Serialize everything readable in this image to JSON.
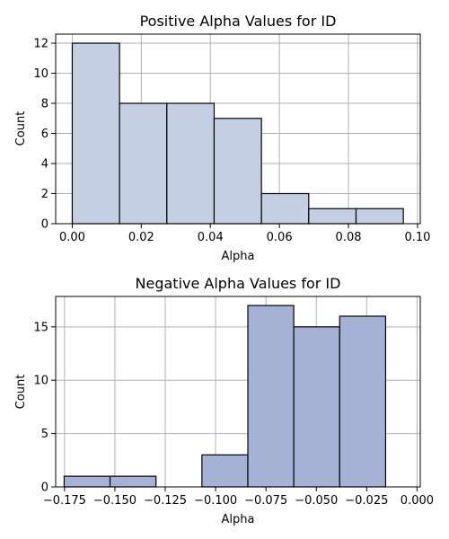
{
  "chart_data": [
    {
      "type": "bar",
      "title": "Positive Alpha Values for ID",
      "xlabel": "Alpha",
      "ylabel": "Count",
      "xlim": [
        -0.0048,
        0.1008
      ],
      "ylim": [
        0,
        12.6
      ],
      "grid": true,
      "bar_color": "#c5cfe3",
      "edge_color": "#000000",
      "bins": [
        {
          "x0": 0.0,
          "x1": 0.0137,
          "count": 12
        },
        {
          "x0": 0.0137,
          "x1": 0.0274,
          "count": 8
        },
        {
          "x0": 0.0274,
          "x1": 0.0411,
          "count": 8
        },
        {
          "x0": 0.0411,
          "x1": 0.0548,
          "count": 7
        },
        {
          "x0": 0.0548,
          "x1": 0.0685,
          "count": 2
        },
        {
          "x0": 0.0685,
          "x1": 0.0822,
          "count": 1
        },
        {
          "x0": 0.0822,
          "x1": 0.0959,
          "count": 1
        }
      ],
      "xticks": [
        {
          "value": 0.0,
          "label": "0.00"
        },
        {
          "value": 0.02,
          "label": "0.02"
        },
        {
          "value": 0.04,
          "label": "0.04"
        },
        {
          "value": 0.06,
          "label": "0.06"
        },
        {
          "value": 0.08,
          "label": "0.08"
        },
        {
          "value": 0.1,
          "label": "0.10"
        }
      ],
      "yticks": [
        {
          "value": 0,
          "label": "0"
        },
        {
          "value": 2,
          "label": "2"
        },
        {
          "value": 4,
          "label": "4"
        },
        {
          "value": 6,
          "label": "6"
        },
        {
          "value": 8,
          "label": "8"
        },
        {
          "value": 10,
          "label": "10"
        },
        {
          "value": 12,
          "label": "12"
        }
      ]
    },
    {
      "type": "bar",
      "title": "Negative Alpha Values for ID",
      "xlabel": "Alpha",
      "ylabel": "Count",
      "xlim": [
        -0.1794,
        0.0016
      ],
      "ylim": [
        0,
        17.85
      ],
      "grid": true,
      "bar_color": "#a5b2d6",
      "edge_color": "#000000",
      "bins": [
        {
          "x0": -0.1752,
          "x1": -0.1524,
          "count": 1
        },
        {
          "x0": -0.1524,
          "x1": -0.1296,
          "count": 1
        },
        {
          "x0": -0.1296,
          "x1": -0.1068,
          "count": 0
        },
        {
          "x0": -0.1068,
          "x1": -0.084,
          "count": 3
        },
        {
          "x0": -0.084,
          "x1": -0.0612,
          "count": 17
        },
        {
          "x0": -0.0612,
          "x1": -0.0384,
          "count": 15
        },
        {
          "x0": -0.0384,
          "x1": -0.0156,
          "count": 16
        }
      ],
      "xticks": [
        {
          "value": -0.175,
          "label": "−0.175"
        },
        {
          "value": -0.15,
          "label": "−0.150"
        },
        {
          "value": -0.125,
          "label": "−0.125"
        },
        {
          "value": -0.1,
          "label": "−0.100"
        },
        {
          "value": -0.075,
          "label": "−0.075"
        },
        {
          "value": -0.05,
          "label": "−0.050"
        },
        {
          "value": -0.025,
          "label": "−0.025"
        },
        {
          "value": 0.0,
          "label": "0.000"
        }
      ],
      "yticks": [
        {
          "value": 0,
          "label": "0"
        },
        {
          "value": 5,
          "label": "5"
        },
        {
          "value": 10,
          "label": "10"
        },
        {
          "value": 15,
          "label": "15"
        }
      ]
    }
  ]
}
